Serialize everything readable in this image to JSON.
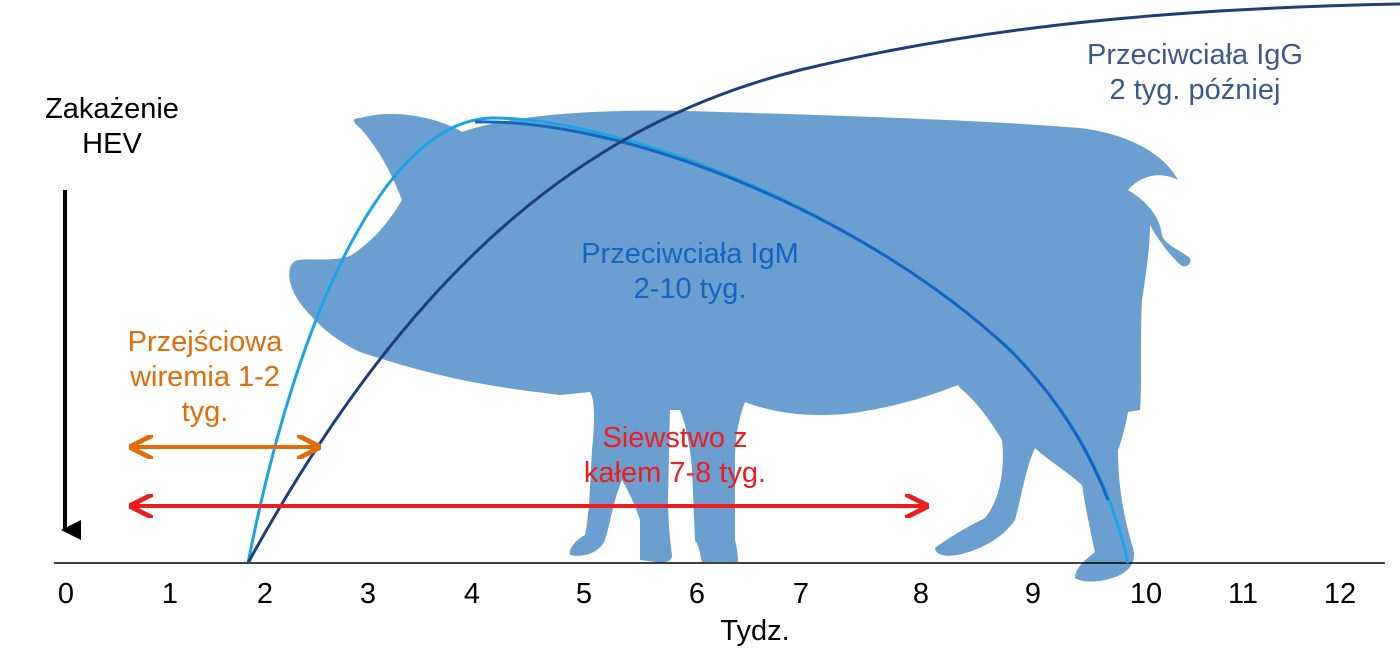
{
  "infection": {
    "line1": "Zakażenie",
    "line2": "HEV"
  },
  "igg": {
    "line1": "Przeciwciała IgG",
    "line2": "2 tyg. później"
  },
  "igm": {
    "line1": "Przeciwciała IgM",
    "line2": "2-10 tyg."
  },
  "viremia": {
    "line1": "Przejściowa",
    "line2": "wiremia 1-2",
    "line3": "tyg."
  },
  "shedding": {
    "line1": "Siewstwo z",
    "line2": "kałem 7-8 tyg."
  },
  "axis": {
    "label": "Tydz.",
    "ticks": [
      "0",
      "1",
      "2",
      "3",
      "4",
      "5",
      "6",
      "7",
      "8",
      "9",
      "10",
      "11",
      "12"
    ]
  },
  "colors": {
    "pig": "#6a9fd0",
    "igm_curve_light": "#1aa3e6",
    "igm_curve_dark": "#1565c0",
    "igg_curve": "#1f3f7a",
    "viremia_arrow": "#e36c0a",
    "shedding_arrow": "#ee1c1c",
    "igg_text": "#3a5a8c",
    "igm_text": "#1565c0"
  },
  "icons": {
    "pig": "pig-silhouette-icon",
    "infection_arrow": "arrow-down-icon"
  }
}
